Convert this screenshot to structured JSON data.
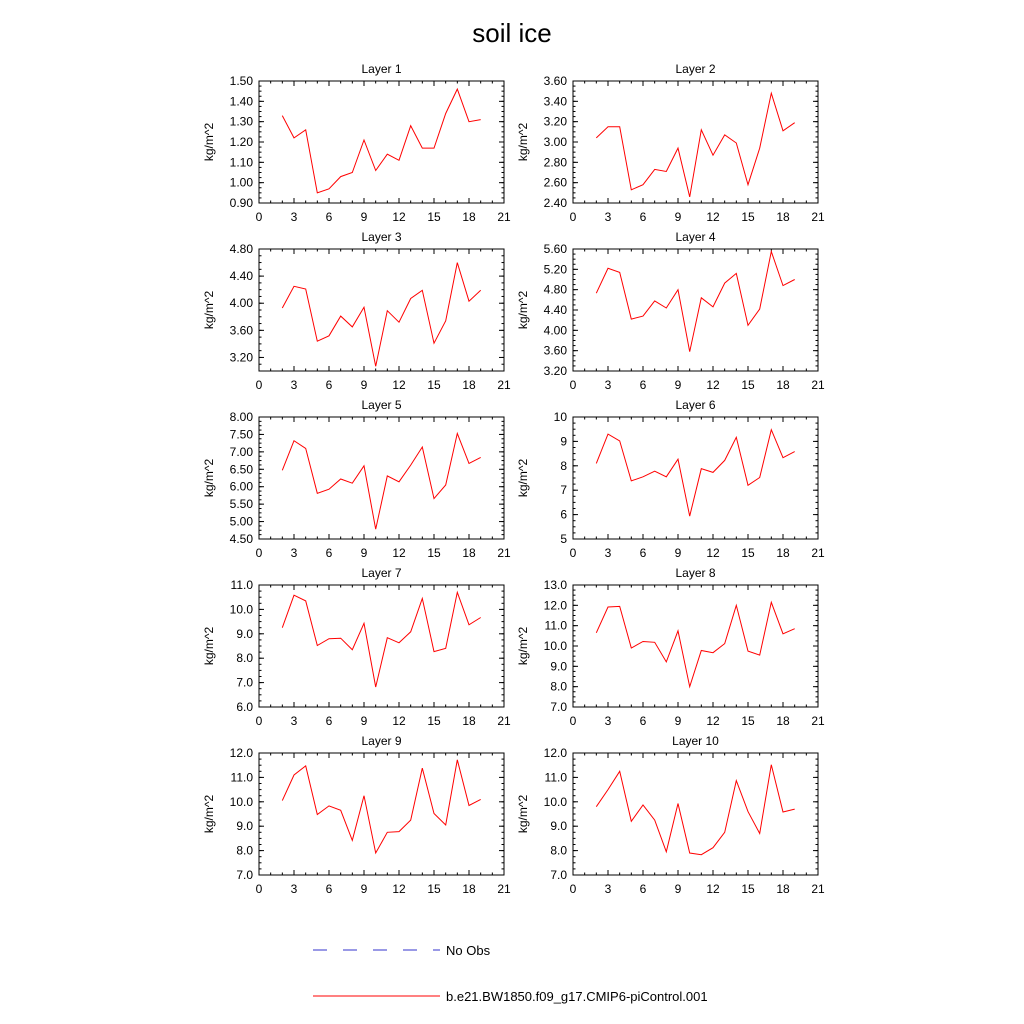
{
  "figure": {
    "title": "soil ice"
  },
  "legend": {
    "obs_label": "No Obs",
    "model_label": "b.e21.BW1850.f09_g17.CMIP6-piControl.001",
    "obs_color": "#3333cc",
    "model_color": "#ff0000"
  },
  "chart_data": [
    {
      "type": "line",
      "title": "Layer 1",
      "ylabel": "kg/m^2",
      "xlim": [
        0,
        21
      ],
      "xticks": [
        "0",
        "3",
        "6",
        "9",
        "12",
        "15",
        "18",
        "21"
      ],
      "ylim": [
        0.9,
        1.5
      ],
      "yticks": [
        "0.90",
        "1.00",
        "1.10",
        "1.20",
        "1.30",
        "1.40",
        "1.50"
      ],
      "x": [
        2,
        3,
        4,
        5,
        6,
        7,
        8,
        9,
        10,
        11,
        12,
        13,
        14,
        15,
        16,
        17,
        18,
        19
      ],
      "series": [
        {
          "name": "b.e21.BW1850.f09_g17.CMIP6-piControl.001",
          "values": [
            1.33,
            1.22,
            1.26,
            0.95,
            0.97,
            1.03,
            1.05,
            1.21,
            1.06,
            1.14,
            1.11,
            1.28,
            1.17,
            1.17,
            1.34,
            1.46,
            1.3,
            1.31
          ]
        }
      ]
    },
    {
      "type": "line",
      "title": "Layer 2",
      "ylabel": "kg/m^2",
      "xlim": [
        0,
        21
      ],
      "xticks": [
        "0",
        "3",
        "6",
        "9",
        "12",
        "15",
        "18",
        "21"
      ],
      "ylim": [
        2.4,
        3.6
      ],
      "yticks": [
        "2.40",
        "2.60",
        "2.80",
        "3.00",
        "3.20",
        "3.40",
        "3.60"
      ],
      "x": [
        2,
        3,
        4,
        5,
        6,
        7,
        8,
        9,
        10,
        11,
        12,
        13,
        14,
        15,
        16,
        17,
        18,
        19
      ],
      "series": [
        {
          "name": "b.e21.BW1850.f09_g17.CMIP6-piControl.001",
          "values": [
            3.04,
            3.15,
            3.15,
            2.53,
            2.58,
            2.73,
            2.71,
            2.94,
            2.46,
            3.12,
            2.87,
            3.07,
            2.99,
            2.58,
            2.94,
            3.48,
            3.11,
            3.19
          ]
        }
      ]
    },
    {
      "type": "line",
      "title": "Layer 3",
      "ylabel": "kg/m^2",
      "xlim": [
        0,
        21
      ],
      "xticks": [
        "0",
        "3",
        "6",
        "9",
        "12",
        "15",
        "18",
        "21"
      ],
      "ylim": [
        3.0,
        4.8
      ],
      "yticks": [
        "3.20",
        "3.60",
        "4.00",
        "4.40",
        "4.80"
      ],
      "x": [
        2,
        3,
        4,
        5,
        6,
        7,
        8,
        9,
        10,
        11,
        12,
        13,
        14,
        15,
        16,
        17,
        18,
        19
      ],
      "series": [
        {
          "name": "b.e21.BW1850.f09_g17.CMIP6-piControl.001",
          "values": [
            3.93,
            4.25,
            4.21,
            3.44,
            3.52,
            3.81,
            3.65,
            3.94,
            3.07,
            3.89,
            3.72,
            4.07,
            4.19,
            3.41,
            3.74,
            4.6,
            4.03,
            4.19
          ]
        }
      ]
    },
    {
      "type": "line",
      "title": "Layer 4",
      "ylabel": "kg/m^2",
      "xlim": [
        0,
        21
      ],
      "xticks": [
        "0",
        "3",
        "6",
        "9",
        "12",
        "15",
        "18",
        "21"
      ],
      "ylim": [
        3.2,
        5.6
      ],
      "yticks": [
        "3.20",
        "3.60",
        "4.00",
        "4.40",
        "4.80",
        "5.20",
        "5.60"
      ],
      "x": [
        2,
        3,
        4,
        5,
        6,
        7,
        8,
        9,
        10,
        11,
        12,
        13,
        14,
        15,
        16,
        17,
        18,
        19
      ],
      "series": [
        {
          "name": "b.e21.BW1850.f09_g17.CMIP6-piControl.001",
          "values": [
            4.73,
            5.22,
            5.14,
            4.22,
            4.28,
            4.58,
            4.44,
            4.8,
            3.58,
            4.64,
            4.46,
            4.93,
            5.12,
            4.1,
            4.42,
            5.55,
            4.88,
            5.0
          ]
        }
      ]
    },
    {
      "type": "line",
      "title": "Layer 5",
      "ylabel": "kg/m^2",
      "xlim": [
        0,
        21
      ],
      "xticks": [
        "0",
        "3",
        "6",
        "9",
        "12",
        "15",
        "18",
        "21"
      ],
      "ylim": [
        4.5,
        8.0
      ],
      "yticks": [
        "4.50",
        "5.00",
        "5.50",
        "6.00",
        "6.50",
        "7.00",
        "7.50",
        "8.00"
      ],
      "x": [
        2,
        3,
        4,
        5,
        6,
        7,
        8,
        9,
        10,
        11,
        12,
        13,
        14,
        15,
        16,
        17,
        18,
        19
      ],
      "series": [
        {
          "name": "b.e21.BW1850.f09_g17.CMIP6-piControl.001",
          "values": [
            6.47,
            7.32,
            7.1,
            5.81,
            5.93,
            6.22,
            6.1,
            6.6,
            4.78,
            6.31,
            6.14,
            6.62,
            7.14,
            5.66,
            6.05,
            7.53,
            6.67,
            6.84
          ]
        }
      ]
    },
    {
      "type": "line",
      "title": "Layer 6",
      "ylabel": "kg/m^2",
      "xlim": [
        0,
        21
      ],
      "xticks": [
        "0",
        "3",
        "6",
        "9",
        "12",
        "15",
        "18",
        "21"
      ],
      "ylim": [
        5,
        10
      ],
      "yticks": [
        "5",
        "6",
        "7",
        "8",
        "9",
        "10"
      ],
      "x": [
        2,
        3,
        4,
        5,
        6,
        7,
        8,
        9,
        10,
        11,
        12,
        13,
        14,
        15,
        16,
        17,
        18,
        19
      ],
      "series": [
        {
          "name": "b.e21.BW1850.f09_g17.CMIP6-piControl.001",
          "values": [
            8.1,
            9.3,
            9.02,
            7.38,
            7.55,
            7.78,
            7.55,
            8.27,
            5.94,
            7.88,
            7.73,
            8.22,
            9.17,
            7.2,
            7.52,
            9.48,
            8.33,
            8.58
          ]
        }
      ]
    },
    {
      "type": "line",
      "title": "Layer 7",
      "ylabel": "kg/m^2",
      "xlim": [
        0,
        21
      ],
      "xticks": [
        "0",
        "3",
        "6",
        "9",
        "12",
        "15",
        "18",
        "21"
      ],
      "ylim": [
        6.0,
        11.0
      ],
      "yticks": [
        "6.0",
        "7.0",
        "8.0",
        "9.0",
        "10.0",
        "11.0"
      ],
      "x": [
        2,
        3,
        4,
        5,
        6,
        7,
        8,
        9,
        10,
        11,
        12,
        13,
        14,
        15,
        16,
        17,
        18,
        19
      ],
      "series": [
        {
          "name": "b.e21.BW1850.f09_g17.CMIP6-piControl.001",
          "values": [
            9.25,
            10.58,
            10.35,
            8.52,
            8.8,
            8.82,
            8.35,
            9.43,
            6.82,
            8.84,
            8.63,
            9.08,
            10.45,
            8.27,
            8.4,
            10.7,
            9.37,
            9.67
          ]
        }
      ]
    },
    {
      "type": "line",
      "title": "Layer 8",
      "ylabel": "kg/m^2",
      "xlim": [
        0,
        21
      ],
      "xticks": [
        "0",
        "3",
        "6",
        "9",
        "12",
        "15",
        "18",
        "21"
      ],
      "ylim": [
        7.0,
        13.0
      ],
      "yticks": [
        "7.0",
        "8.0",
        "9.0",
        "10.0",
        "11.0",
        "12.0",
        "13.0"
      ],
      "x": [
        2,
        3,
        4,
        5,
        6,
        7,
        8,
        9,
        10,
        11,
        12,
        13,
        14,
        15,
        16,
        17,
        18,
        19
      ],
      "series": [
        {
          "name": "b.e21.BW1850.f09_g17.CMIP6-piControl.001",
          "values": [
            10.65,
            11.92,
            11.95,
            9.9,
            10.22,
            10.18,
            9.22,
            10.75,
            8.0,
            9.78,
            9.67,
            10.12,
            12.0,
            9.75,
            9.55,
            12.15,
            10.6,
            10.85
          ]
        }
      ]
    },
    {
      "type": "line",
      "title": "Layer 9",
      "ylabel": "kg/m^2",
      "xlim": [
        0,
        21
      ],
      "xticks": [
        "0",
        "3",
        "6",
        "9",
        "12",
        "15",
        "18",
        "21"
      ],
      "ylim": [
        7.0,
        12.0
      ],
      "yticks": [
        "7.0",
        "8.0",
        "9.0",
        "10.0",
        "11.0",
        "12.0"
      ],
      "x": [
        2,
        3,
        4,
        5,
        6,
        7,
        8,
        9,
        10,
        11,
        12,
        13,
        14,
        15,
        16,
        17,
        18,
        19
      ],
      "series": [
        {
          "name": "b.e21.BW1850.f09_g17.CMIP6-piControl.001",
          "values": [
            10.05,
            11.1,
            11.47,
            9.48,
            9.83,
            9.65,
            8.42,
            10.25,
            7.9,
            8.75,
            8.78,
            9.25,
            11.38,
            9.52,
            9.05,
            11.72,
            9.85,
            10.1
          ]
        }
      ]
    },
    {
      "type": "line",
      "title": "Layer 10",
      "ylabel": "kg/m^2",
      "xlim": [
        0,
        21
      ],
      "xticks": [
        "0",
        "3",
        "6",
        "9",
        "12",
        "15",
        "18",
        "21"
      ],
      "ylim": [
        7.0,
        12.0
      ],
      "yticks": [
        "7.0",
        "8.0",
        "9.0",
        "10.0",
        "11.0",
        "12.0"
      ],
      "x": [
        2,
        3,
        4,
        5,
        6,
        7,
        8,
        9,
        10,
        11,
        12,
        13,
        14,
        15,
        16,
        17,
        18,
        19
      ],
      "series": [
        {
          "name": "b.e21.BW1850.f09_g17.CMIP6-piControl.001",
          "values": [
            9.8,
            10.5,
            11.25,
            9.2,
            9.87,
            9.25,
            7.95,
            9.93,
            7.9,
            7.83,
            8.12,
            8.75,
            10.87,
            9.6,
            8.7,
            11.52,
            9.58,
            9.7
          ]
        }
      ]
    }
  ]
}
